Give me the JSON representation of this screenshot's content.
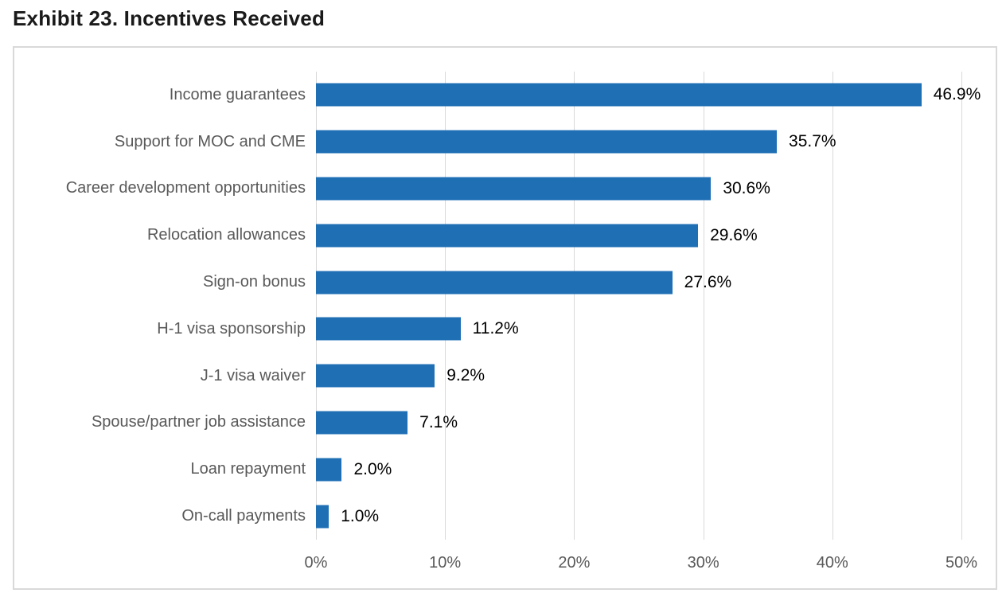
{
  "title": "Exhibit 23. Incentives Received",
  "chart_data": {
    "type": "bar",
    "orientation": "horizontal",
    "title": "Exhibit 23. Incentives Received",
    "categories": [
      "Income guarantees",
      "Support for MOC and CME",
      "Career development opportunities",
      "Relocation allowances",
      "Sign-on bonus",
      "H-1 visa sponsorship",
      "J-1 visa waiver",
      "Spouse/partner job assistance",
      "Loan repayment",
      "On-call payments"
    ],
    "values": [
      46.9,
      35.7,
      30.6,
      29.6,
      27.6,
      11.2,
      9.2,
      7.1,
      2.0,
      1.0
    ],
    "data_labels": [
      "46.9%",
      "35.7%",
      "30.6%",
      "29.6%",
      "27.6%",
      "11.2%",
      "9.2%",
      "7.1%",
      "2.0%",
      "1.0%"
    ],
    "xlabel": "",
    "ylabel": "",
    "xlim": [
      0,
      50
    ],
    "x_tick_values": [
      0,
      10,
      20,
      30,
      40,
      50
    ],
    "x_tick_labels": [
      "0%",
      "10%",
      "20%",
      "30%",
      "40%",
      "50%"
    ],
    "grid": "vertical",
    "legend": "none",
    "colors": {
      "bar": "#1F6FB5",
      "data_label": "#000000",
      "axis_text": "#595959",
      "gridline": "#D9D9D9",
      "frame_border": "#D9D9D9",
      "title_text": "#1A1A1A",
      "background": "#FFFFFF"
    }
  }
}
